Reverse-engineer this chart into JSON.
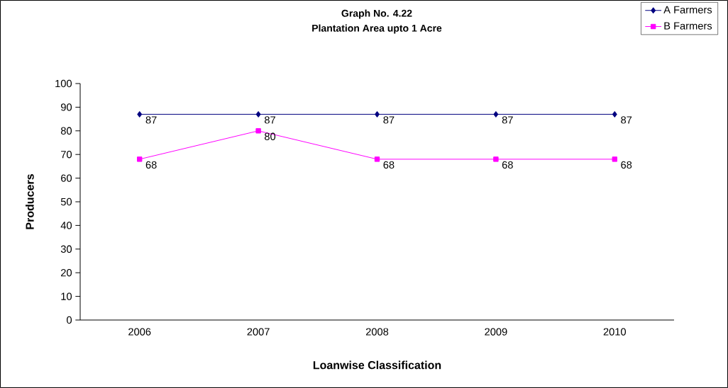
{
  "chart_data": {
    "type": "line",
    "title": "Graph No. 4.22",
    "subtitle": "Plantation Area upto 1 Acre",
    "xlabel": "Loanwise Classification",
    "ylabel": "Producers",
    "categories": [
      "2006",
      "2007",
      "2008",
      "2009",
      "2010"
    ],
    "series": [
      {
        "name": "A Farmers",
        "color": "#000080",
        "marker": "diamond",
        "values": [
          87,
          87,
          87,
          87,
          87
        ]
      },
      {
        "name": "B Farmers",
        "color": "#ff00ff",
        "marker": "square",
        "values": [
          68,
          80,
          68,
          68,
          68
        ]
      }
    ],
    "ylim": [
      0,
      100
    ],
    "yticks": [
      0,
      10,
      20,
      30,
      40,
      50,
      60,
      70,
      80,
      90,
      100
    ],
    "grid": false,
    "legend": "top right",
    "data_labels": true,
    "line_style": "solid"
  }
}
